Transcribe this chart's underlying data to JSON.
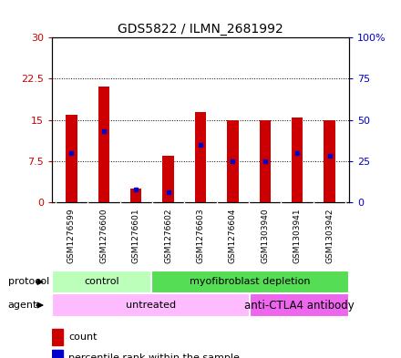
{
  "title": "GDS5822 / ILMN_2681992",
  "samples": [
    "GSM1276599",
    "GSM1276600",
    "GSM1276601",
    "GSM1276602",
    "GSM1276603",
    "GSM1276604",
    "GSM1303940",
    "GSM1303941",
    "GSM1303942"
  ],
  "counts": [
    16,
    21,
    2.5,
    8.5,
    16.5,
    15,
    15,
    15.5,
    15
  ],
  "percentile_ranks_pct": [
    30,
    43,
    8,
    6,
    35,
    25,
    25,
    30,
    28
  ],
  "left_ylim": [
    0,
    30
  ],
  "right_ylim": [
    0,
    100
  ],
  "left_yticks": [
    0,
    7.5,
    15,
    22.5,
    30
  ],
  "left_yticklabels": [
    "0",
    "7.5",
    "15",
    "22.5",
    "30"
  ],
  "right_yticks": [
    0,
    25,
    50,
    75,
    100
  ],
  "right_yticklabels": [
    "0",
    "25",
    "50",
    "75",
    "100%"
  ],
  "left_color": "#cc0000",
  "right_color": "#0000cc",
  "bar_color": "#cc0000",
  "dot_color": "#0000cc",
  "protocol_colors": [
    "#bbffbb",
    "#55dd55"
  ],
  "agent_colors": [
    "#ffbbff",
    "#ee66ee"
  ],
  "bg_color": "#d8d8d8",
  "plot_bg": "#ffffff"
}
